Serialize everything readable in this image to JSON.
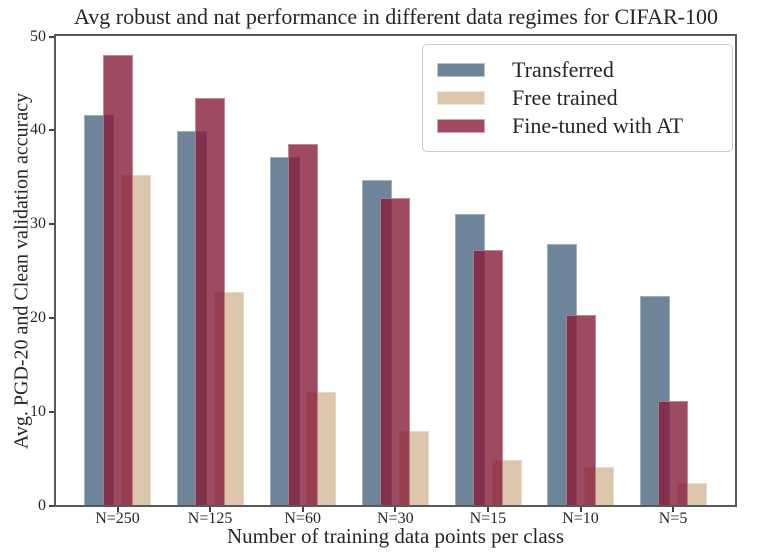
{
  "chart_data": {
    "type": "bar",
    "title": "Avg robust and nat performance in different data regimes for CIFAR-100",
    "xlabel": "Number of training data points per class",
    "ylabel": "Avg. PGD-20 and Clean validation accuracy",
    "categories": [
      "N=250",
      "N=125",
      "N=60",
      "N=30",
      "N=15",
      "N=10",
      "N=5"
    ],
    "series": [
      {
        "name": "Transferred",
        "color": "#6e8498",
        "fill": "rgba(74,101,126,0.8)",
        "values": [
          41.6,
          39.9,
          37.1,
          34.6,
          31.0,
          27.8,
          22.3
        ]
      },
      {
        "name": "Free trained",
        "color": "#dcc7ac",
        "fill": "rgba(211,185,151,0.8)",
        "values": [
          35.2,
          22.7,
          12.0,
          7.9,
          4.8,
          4.0,
          2.3
        ]
      },
      {
        "name": "Fine-tuned with AT",
        "color": "#9e4a61",
        "fill": "rgba(134,29,57,0.8)",
        "values": [
          48.0,
          43.4,
          38.5,
          32.7,
          27.2,
          20.3,
          11.1
        ]
      }
    ],
    "ylim": [
      0,
      50
    ],
    "yticks": [
      0,
      10,
      20,
      30,
      40,
      50
    ],
    "legend_position": "upper right",
    "grid": false,
    "style": {
      "axis_color": "#595959",
      "text_color": "#262626",
      "bars_overlap": true
    }
  }
}
